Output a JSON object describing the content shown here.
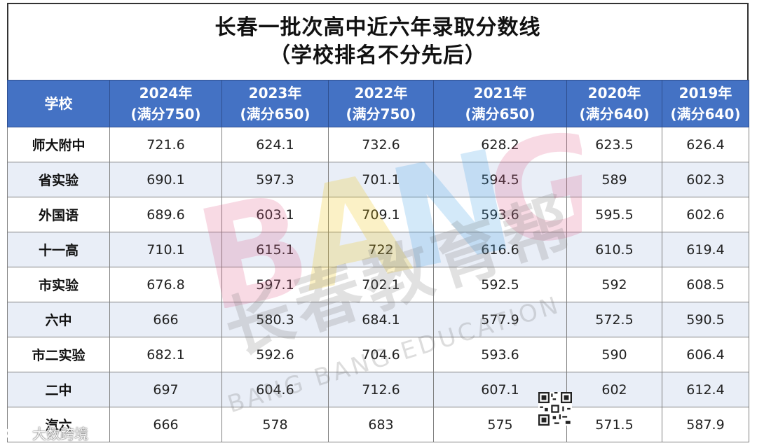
{
  "title": {
    "line1": "长春一批次高中近六年录取分数线",
    "line2": "（学校排名不分先后）"
  },
  "table": {
    "headers": [
      {
        "main": "学校",
        "sub": ""
      },
      {
        "main": "2024年",
        "sub": "(满分750)"
      },
      {
        "main": "2023年",
        "sub": "(满分650)"
      },
      {
        "main": "2022年",
        "sub": "(满分750)"
      },
      {
        "main": "2021年",
        "sub": "(满分650)"
      },
      {
        "main": "2020年",
        "sub": "(满分640)"
      },
      {
        "main": "2019年",
        "sub": "(满分640)"
      }
    ],
    "rows": [
      [
        "师大附中",
        "721.6",
        "624.1",
        "732.6",
        "628.2",
        "623.5",
        "626.4"
      ],
      [
        "省实验",
        "690.1",
        "597.3",
        "701.1",
        "594.5",
        "589",
        "602.3"
      ],
      [
        "外国语",
        "689.6",
        "603.1",
        "709.1",
        "593.6",
        "595.5",
        "602.6"
      ],
      [
        "十一高",
        "710.1",
        "615.1",
        "722",
        "616.6",
        "610.5",
        "619.4"
      ],
      [
        "市实验",
        "676.8",
        "597.1",
        "702.1",
        "592.5",
        "592",
        "608.5"
      ],
      [
        "六中",
        "666",
        "580.3",
        "684.1",
        "577.9",
        "572.5",
        "590.5"
      ],
      [
        "市二实验",
        "682.1",
        "592.6",
        "704.6",
        "593.6",
        "590",
        "606.4"
      ],
      [
        "二中",
        "697",
        "604.6",
        "712.6",
        "607.1",
        "602",
        "612.4"
      ],
      [
        "汽六",
        "666",
        "578",
        "683",
        "575",
        "571.5",
        "587.9"
      ]
    ]
  },
  "watermark": {
    "letters": "BANG",
    "chinese": "长春教育帮",
    "english": "BANG BANG EDUCATION"
  },
  "corner_logo": {
    "text": "大数跨境"
  },
  "colors": {
    "header_bg": "#4472c4",
    "row_alt_bg": "#e9eef7"
  }
}
